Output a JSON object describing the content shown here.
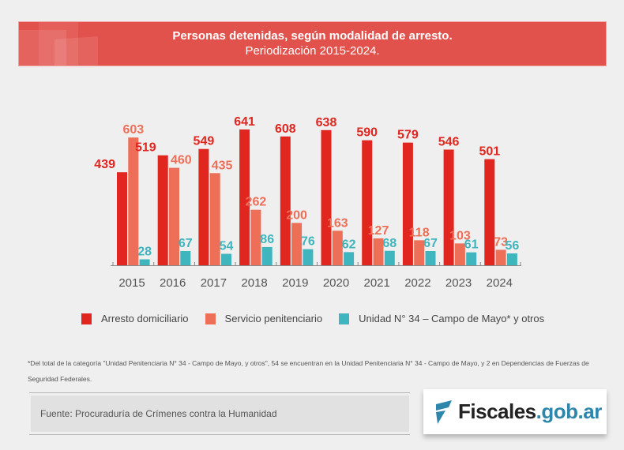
{
  "header": {
    "title": "Personas detenidas, según modalidad de arresto.",
    "subtitle": "Periodización 2015-2024."
  },
  "colors": {
    "arresto_domiciliario": "#e0261f",
    "servicio_penitenciario": "#ee6f58",
    "unidad_34": "#3fb5bd",
    "banner": "#e2524d",
    "logo_accent": "#2e86ab"
  },
  "chart_data": {
    "type": "bar",
    "title": "Personas detenidas, según modalidad de arresto. Periodización 2015-2024.",
    "xlabel": "",
    "ylabel": "",
    "ylim": [
      0,
      641
    ],
    "grid": false,
    "legend_position": "bottom",
    "categories": [
      "2015",
      "2016",
      "2017",
      "2018",
      "2019",
      "2020",
      "2021",
      "2022",
      "2023",
      "2024"
    ],
    "series": [
      {
        "name": "Arresto domiciliario",
        "key": "arresto_domiciliario",
        "values": [
          439,
          519,
          549,
          641,
          608,
          638,
          590,
          579,
          546,
          501
        ]
      },
      {
        "name": "Servicio penitenciario",
        "key": "servicio_penitenciario",
        "values": [
          603,
          460,
          435,
          262,
          200,
          163,
          127,
          118,
          103,
          73
        ]
      },
      {
        "name": "Unidad N° 34 – Campo de Mayo* y otros",
        "key": "unidad_34",
        "values": [
          28,
          67,
          54,
          86,
          76,
          62,
          68,
          67,
          61,
          56
        ]
      }
    ]
  },
  "legend": [
    {
      "label": "Arresto domiciliario",
      "key": "arresto_domiciliario"
    },
    {
      "label": "Servicio penitenciario",
      "key": "servicio_penitenciario"
    },
    {
      "label": "Unidad N° 34 – Campo de Mayo* y otros",
      "key": "unidad_34"
    }
  ],
  "footnote": "*Del total de la categoría \"Unidad Penitenciaria N° 34 - Campo de Mayo, y otros\", 54 se encuentran en la Unidad Penitenciaria N° 34 - Campo de Mayo, y 2 en Dependencias de Fuerzas de Seguridad Federales.",
  "source": "Fuente: Procuraduría de Crímenes contra la Humanidad",
  "logo": {
    "name": "Fiscales",
    "domain": ".gob.ar",
    "icon": "fiscales-logo-icon"
  }
}
